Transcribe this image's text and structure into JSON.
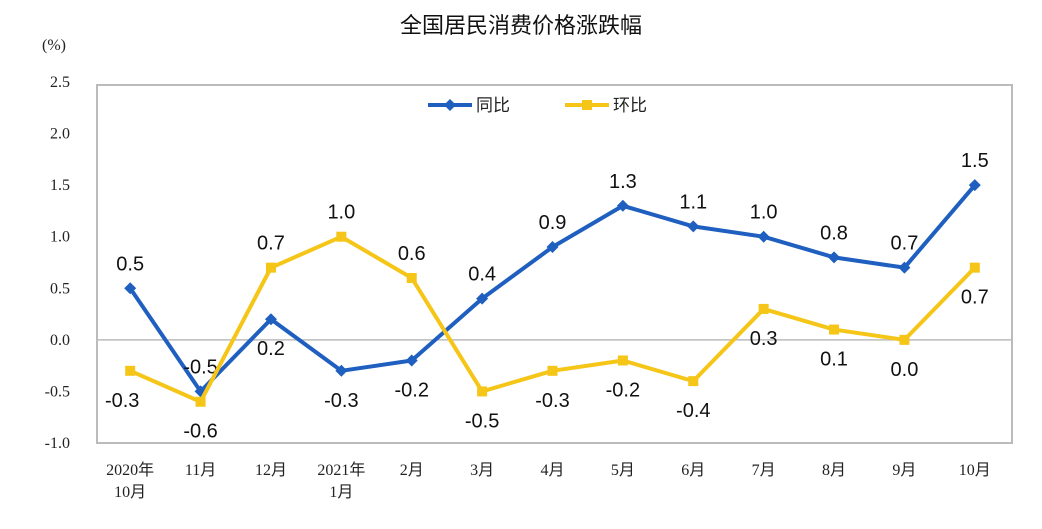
{
  "chart_data": {
    "type": "line",
    "title": "全国居民消费价格涨跌幅",
    "ylabel": "(%)",
    "categories": [
      [
        "2020年",
        "10月"
      ],
      [
        "11月"
      ],
      [
        "12月"
      ],
      [
        "2021年",
        "1月"
      ],
      [
        "2月"
      ],
      [
        "3月"
      ],
      [
        "4月"
      ],
      [
        "5月"
      ],
      [
        "6月"
      ],
      [
        "7月"
      ],
      [
        "8月"
      ],
      [
        "9月"
      ],
      [
        "10月"
      ]
    ],
    "ylim": [
      -1.0,
      2.5
    ],
    "yticks": [
      "2.5",
      "2.0",
      "1.5",
      "1.0",
      "0.5",
      "0.0",
      "-0.5",
      "-1.0"
    ],
    "grid": false,
    "legend_placement": "top-center",
    "series": [
      {
        "name": "同比",
        "color": "#1f5fbf",
        "marker": "diamond",
        "values": [
          0.5,
          -0.5,
          0.2,
          -0.3,
          -0.2,
          0.4,
          0.9,
          1.3,
          1.1,
          1.0,
          0.8,
          0.7,
          1.5
        ]
      },
      {
        "name": "环比",
        "color": "#f5c518",
        "marker": "square",
        "values": [
          -0.3,
          -0.6,
          0.7,
          1.0,
          0.6,
          -0.5,
          -0.3,
          -0.2,
          -0.4,
          0.3,
          0.1,
          0.0,
          0.7
        ]
      }
    ]
  }
}
